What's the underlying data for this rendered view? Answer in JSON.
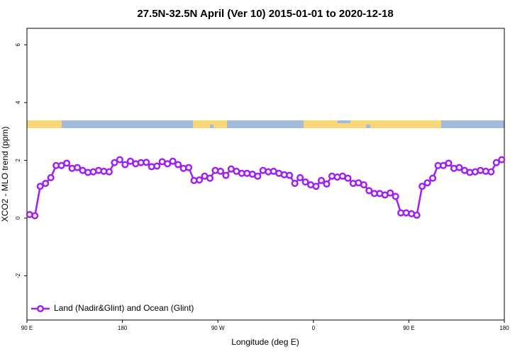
{
  "chart_data": {
    "type": "line",
    "title": "27.5N-32.5N April (Ver 10)   2015-01-01 to 2020-12-18",
    "xlabel": "Longitude (deg E)",
    "ylabel": "XCO2 - MLO trend (ppm)",
    "x": [
      92.5,
      97.5,
      102.5,
      107.5,
      112.5,
      117.5,
      122.5,
      127.5,
      132.5,
      137.5,
      142.5,
      147.5,
      152.5,
      157.5,
      162.5,
      167.5,
      172.5,
      177.5,
      182.5,
      187.5,
      192.5,
      197.5,
      202.5,
      207.5,
      212.5,
      217.5,
      222.5,
      227.5,
      232.5,
      237.5,
      242.5,
      247.5,
      252.5,
      257.5,
      262.5,
      267.5,
      272.5,
      277.5,
      282.5,
      287.5,
      292.5,
      297.5,
      302.5,
      307.5,
      312.5,
      317.5,
      322.5,
      327.5,
      332.5,
      337.5,
      342.5,
      347.5,
      352.5,
      357.5,
      362.5,
      367.5,
      372.5,
      377.5,
      382.5,
      387.5,
      392.5,
      397.5,
      402.5,
      407.5,
      412.5,
      417.5,
      422.5,
      427.5,
      432.5,
      437.5,
      442.5,
      447.5,
      452.5,
      457.5,
      462.5,
      467.5,
      472.5,
      477.5,
      482.5,
      487.5,
      492.5,
      497.5,
      502.5,
      507.5,
      512.5,
      517.5,
      522.5,
      527.5,
      532.5,
      537.5
    ],
    "series": [
      {
        "name": "Land (Nadir&Glint) and Ocean (Glint)",
        "color": "#a020f0",
        "values": [
          0.12,
          0.08,
          1.1,
          1.2,
          1.4,
          1.82,
          1.82,
          1.9,
          1.72,
          1.75,
          1.65,
          1.58,
          1.6,
          1.65,
          1.62,
          1.6,
          1.92,
          2.02,
          1.85,
          1.97,
          1.88,
          1.92,
          1.93,
          1.78,
          1.8,
          1.95,
          1.88,
          1.97,
          1.85,
          1.72,
          1.75,
          1.3,
          1.32,
          1.45,
          1.38,
          1.65,
          1.62,
          1.48,
          1.7,
          1.62,
          1.55,
          1.55,
          1.52,
          1.45,
          1.65,
          1.6,
          1.62,
          1.55,
          1.5,
          1.48,
          1.2,
          1.4,
          1.25,
          1.15,
          1.1,
          1.3,
          1.18,
          1.45,
          1.42,
          1.45,
          1.38,
          1.2,
          1.22,
          1.15,
          0.95,
          0.85,
          0.85,
          0.8,
          0.87,
          0.75,
          0.18,
          0.18,
          0.15,
          0.1,
          1.1,
          1.22,
          1.38,
          1.82,
          1.82,
          1.9,
          1.72,
          1.75,
          1.65,
          1.58,
          1.6,
          1.65,
          1.62,
          1.6,
          1.92,
          2.02
        ]
      }
    ],
    "xlim": [
      90,
      540
    ],
    "xticks": [
      {
        "value": 90,
        "label": "90 E"
      },
      180,
      {
        "value": 270,
        "label": "90 W"
      },
      {
        "value": 360,
        "label": "0"
      },
      {
        "value": 450,
        "label": "90 E"
      },
      {
        "value": 540,
        "label": "180"
      }
    ],
    "ylim": [
      -3.53,
      6.57
    ],
    "yticks": [
      -2,
      0,
      2,
      4,
      6
    ],
    "legend": "bottom-left"
  }
}
